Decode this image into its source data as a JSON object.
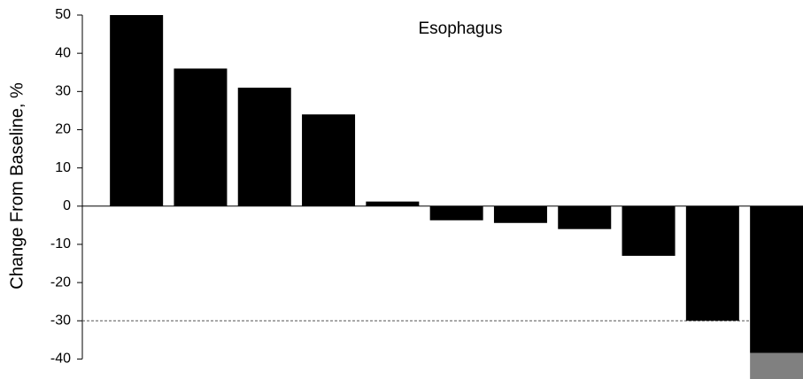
{
  "chart_data": {
    "type": "bar",
    "stacked": true,
    "title": "Esophagus",
    "y_label": "Change From Baseline, %",
    "series": [
      {
        "color": "#000000",
        "values": [
          50,
          36,
          31,
          24,
          1.2,
          -3.7,
          -4.4,
          -6,
          -13,
          -30,
          -38.4
        ]
      },
      {
        "color": "#808080",
        "values": [
          null,
          null,
          null,
          null,
          null,
          null,
          null,
          null,
          null,
          null,
          -7
        ]
      }
    ],
    "ylim": [
      -45,
      50
    ],
    "yticks": [
      50,
      40,
      30,
      20,
      10,
      0,
      -10,
      -20,
      -30,
      -40
    ],
    "reference_line": -30,
    "grid": false
  }
}
